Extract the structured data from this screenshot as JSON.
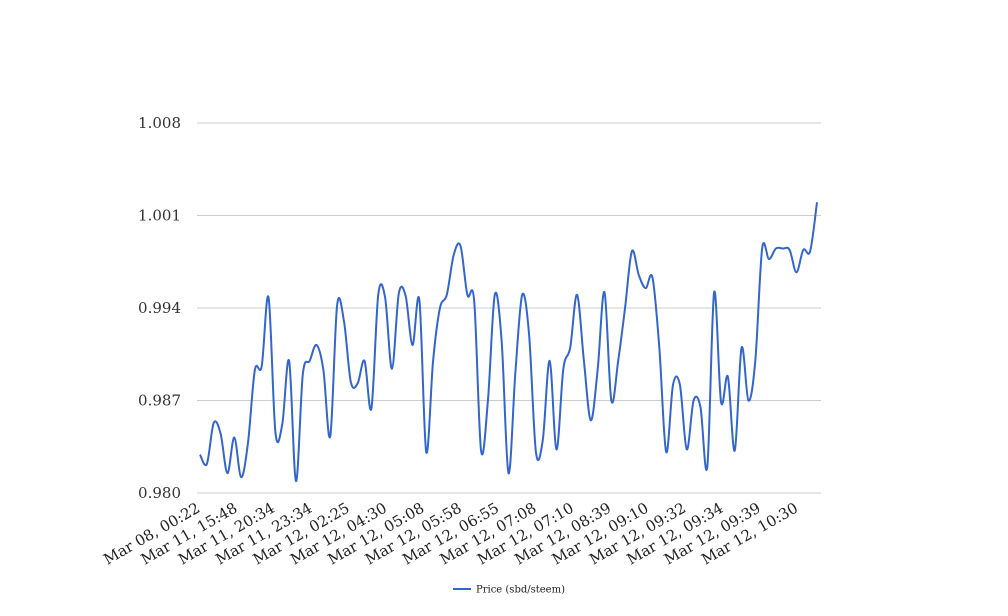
{
  "chart_data": {
    "type": "line",
    "title": "",
    "xlabel": "",
    "ylabel": "",
    "ylim": [
      0.98,
      1.008
    ],
    "y_ticks": [
      "0.980",
      "0.987",
      "0.994",
      "1.001",
      "1.008"
    ],
    "y_tick_values": [
      0.98,
      0.987,
      0.994,
      1.001,
      1.008
    ],
    "x_tick_labels": [
      "Mar 08, 00:22",
      "Mar 11, 15:48",
      "Mar 11, 20:34",
      "Mar 11, 23:34",
      "Mar 12, 02:25",
      "Mar 12, 04:30",
      "Mar 12, 05:08",
      "Mar 12, 05:58",
      "Mar 12, 06:55",
      "Mar 12, 07:08",
      "Mar 12, 07:10",
      "Mar 12, 08:39",
      "Mar 12, 09:10",
      "Mar 12, 09:32",
      "Mar 12, 09:34",
      "Mar 12, 09:39",
      "Mar 12, 10:30"
    ],
    "grid": true,
    "legend_position": "bottom",
    "series": [
      {
        "name": "Price (sbd/steem)",
        "color": "#3366cc",
        "values": [
          0.9829,
          0.9822,
          0.9853,
          0.9845,
          0.9815,
          0.9842,
          0.9812,
          0.9838,
          0.9893,
          0.9896,
          0.9948,
          0.9846,
          0.9852,
          0.99,
          0.9809,
          0.989,
          0.99,
          0.9912,
          0.9893,
          0.9843,
          0.9942,
          0.993,
          0.9884,
          0.9883,
          0.99,
          0.9864,
          0.995,
          0.9948,
          0.9894,
          0.9951,
          0.9949,
          0.9912,
          0.9946,
          0.9831,
          0.99,
          0.994,
          0.995,
          0.998,
          0.9987,
          0.995,
          0.9945,
          0.9832,
          0.987,
          0.995,
          0.9915,
          0.9815,
          0.9891,
          0.995,
          0.992,
          0.9831,
          0.984,
          0.99,
          0.9833,
          0.9894,
          0.991,
          0.995,
          0.99,
          0.9855,
          0.9893,
          0.9952,
          0.987,
          0.99,
          0.994,
          0.9983,
          0.9965,
          0.9955,
          0.9963,
          0.991,
          0.9831,
          0.9882,
          0.9882,
          0.9833,
          0.987,
          0.9865,
          0.982,
          0.9952,
          0.9869,
          0.9888,
          0.9832,
          0.991,
          0.987,
          0.99,
          0.9985,
          0.9977,
          0.9985,
          0.9985,
          0.9984,
          0.9967,
          0.9984,
          0.9983,
          1.002
        ]
      }
    ]
  }
}
